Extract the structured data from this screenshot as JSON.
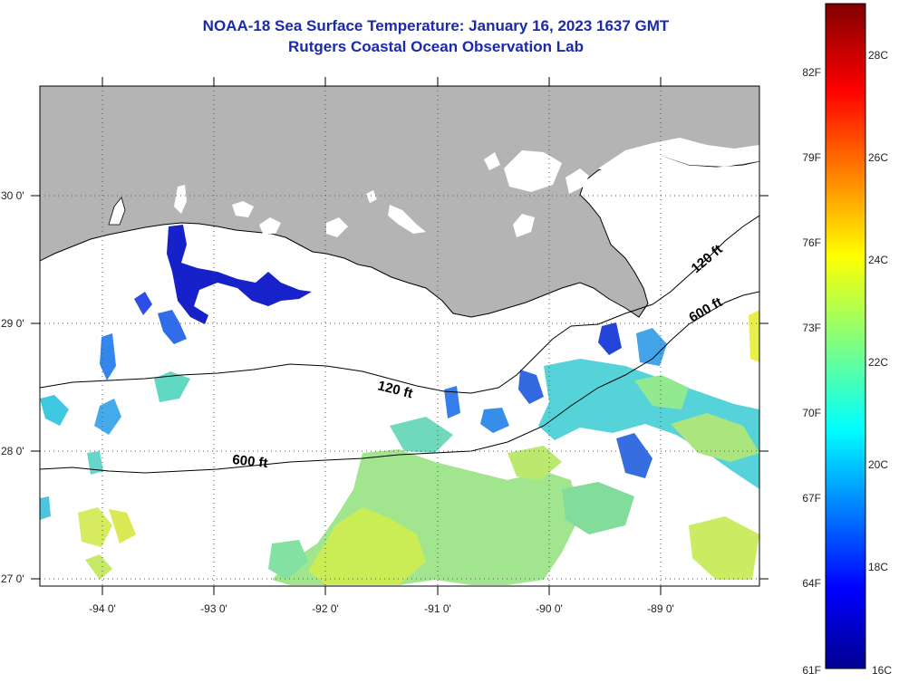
{
  "header": {
    "title": "NOAA-18 Sea Surface Temperature:  January 16, 2023 1637 GMT",
    "subtitle": "Rutgers Coastal Ocean Observation Lab"
  },
  "map": {
    "lon_labels": [
      "-94 0'",
      "-93 0'",
      "-92 0'",
      "-91 0'",
      "-90 0'",
      "-89 0'"
    ],
    "lat_labels": [
      "30 0'",
      "29 0'",
      "28 0'",
      "27 0'"
    ],
    "contours": {
      "shallow": "120 ft",
      "deep": "600 ft",
      "shallow_right": "120 ft",
      "deep_right": "600 ft"
    },
    "colors": {
      "land": "#b4b4b4",
      "ocean_nodata": "#ffffff",
      "title": "#1a2aa8"
    }
  },
  "colorbar": {
    "fahrenheit": [
      "82F",
      "79F",
      "76F",
      "73F",
      "70F",
      "67F",
      "64F",
      "61F"
    ],
    "celsius": [
      "28C",
      "26C",
      "24C",
      "22C",
      "20C",
      "18C",
      "16C"
    ],
    "min_c": 16,
    "max_c": 29.5,
    "colormap": "jet"
  }
}
